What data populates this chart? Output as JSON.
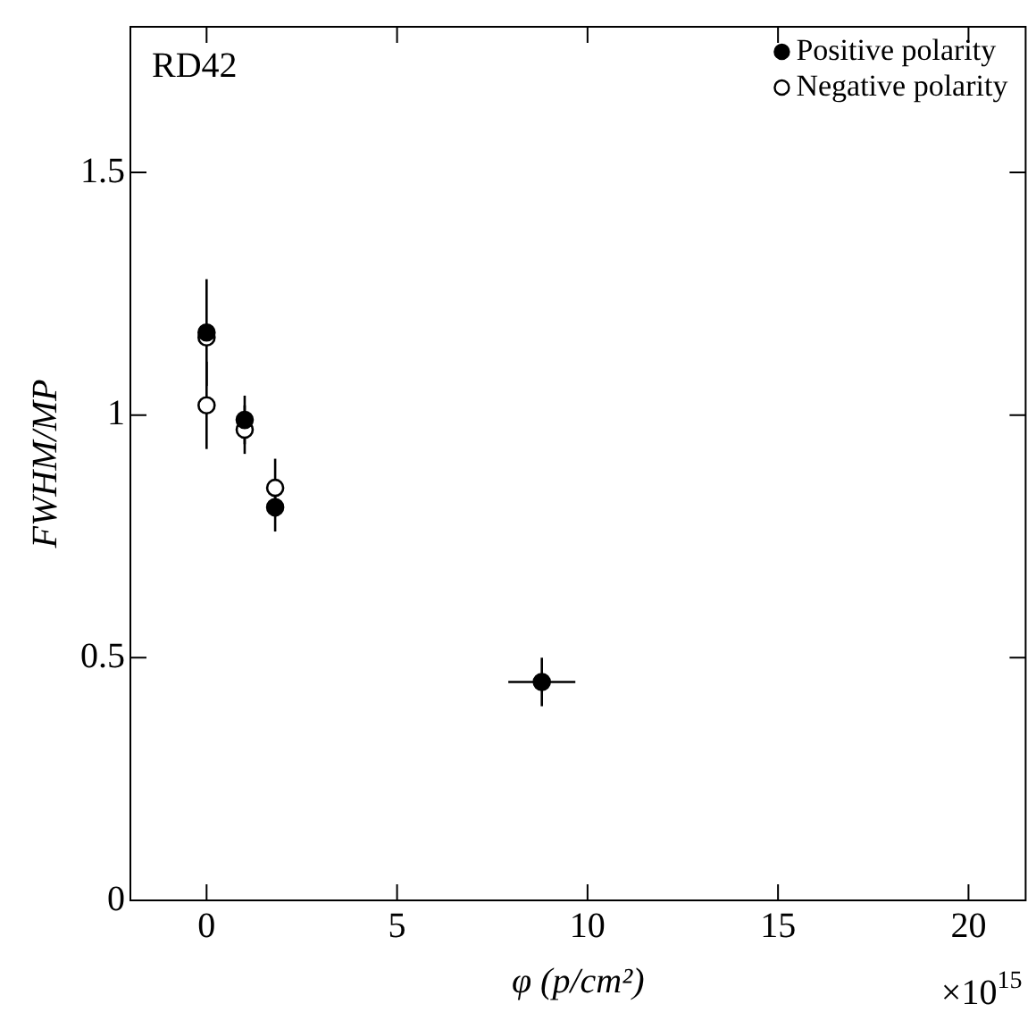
{
  "chart_data": {
    "type": "scatter",
    "xlabel": "φ (p/cm²)",
    "ylabel": "FWHM/MP",
    "annotations": [
      "RD42",
      "×10$^{15}$"
    ],
    "xlim": [
      -2,
      21.5
    ],
    "xticks": [
      0,
      5,
      10,
      15,
      20
    ],
    "ylim": [
      0,
      1.8
    ],
    "yticks": [
      0,
      0.5,
      1,
      1.5
    ],
    "marker": "circle",
    "legend": "top right",
    "series": [
      {
        "name": "Positive polarity",
        "color": "#000000",
        "x": [
          0,
          1,
          1.8,
          8.8
        ],
        "values": [
          1.17,
          0.99,
          0.81,
          0.45
        ],
        "errors": [
          0.11,
          0.05,
          0.05,
          0.05
        ],
        "xerrors": [
          null,
          null,
          null,
          0.88
        ]
      },
      {
        "name": "Negative polarity",
        "color": "#ffffff",
        "x": [
          0,
          0,
          1,
          1.8
        ],
        "values": [
          1.16,
          1.02,
          0.97,
          0.85
        ],
        "errors": [
          null,
          0.09,
          0.05,
          0.06
        ],
        "xerrors": [
          null,
          null,
          null,
          null
        ]
      }
    ]
  }
}
